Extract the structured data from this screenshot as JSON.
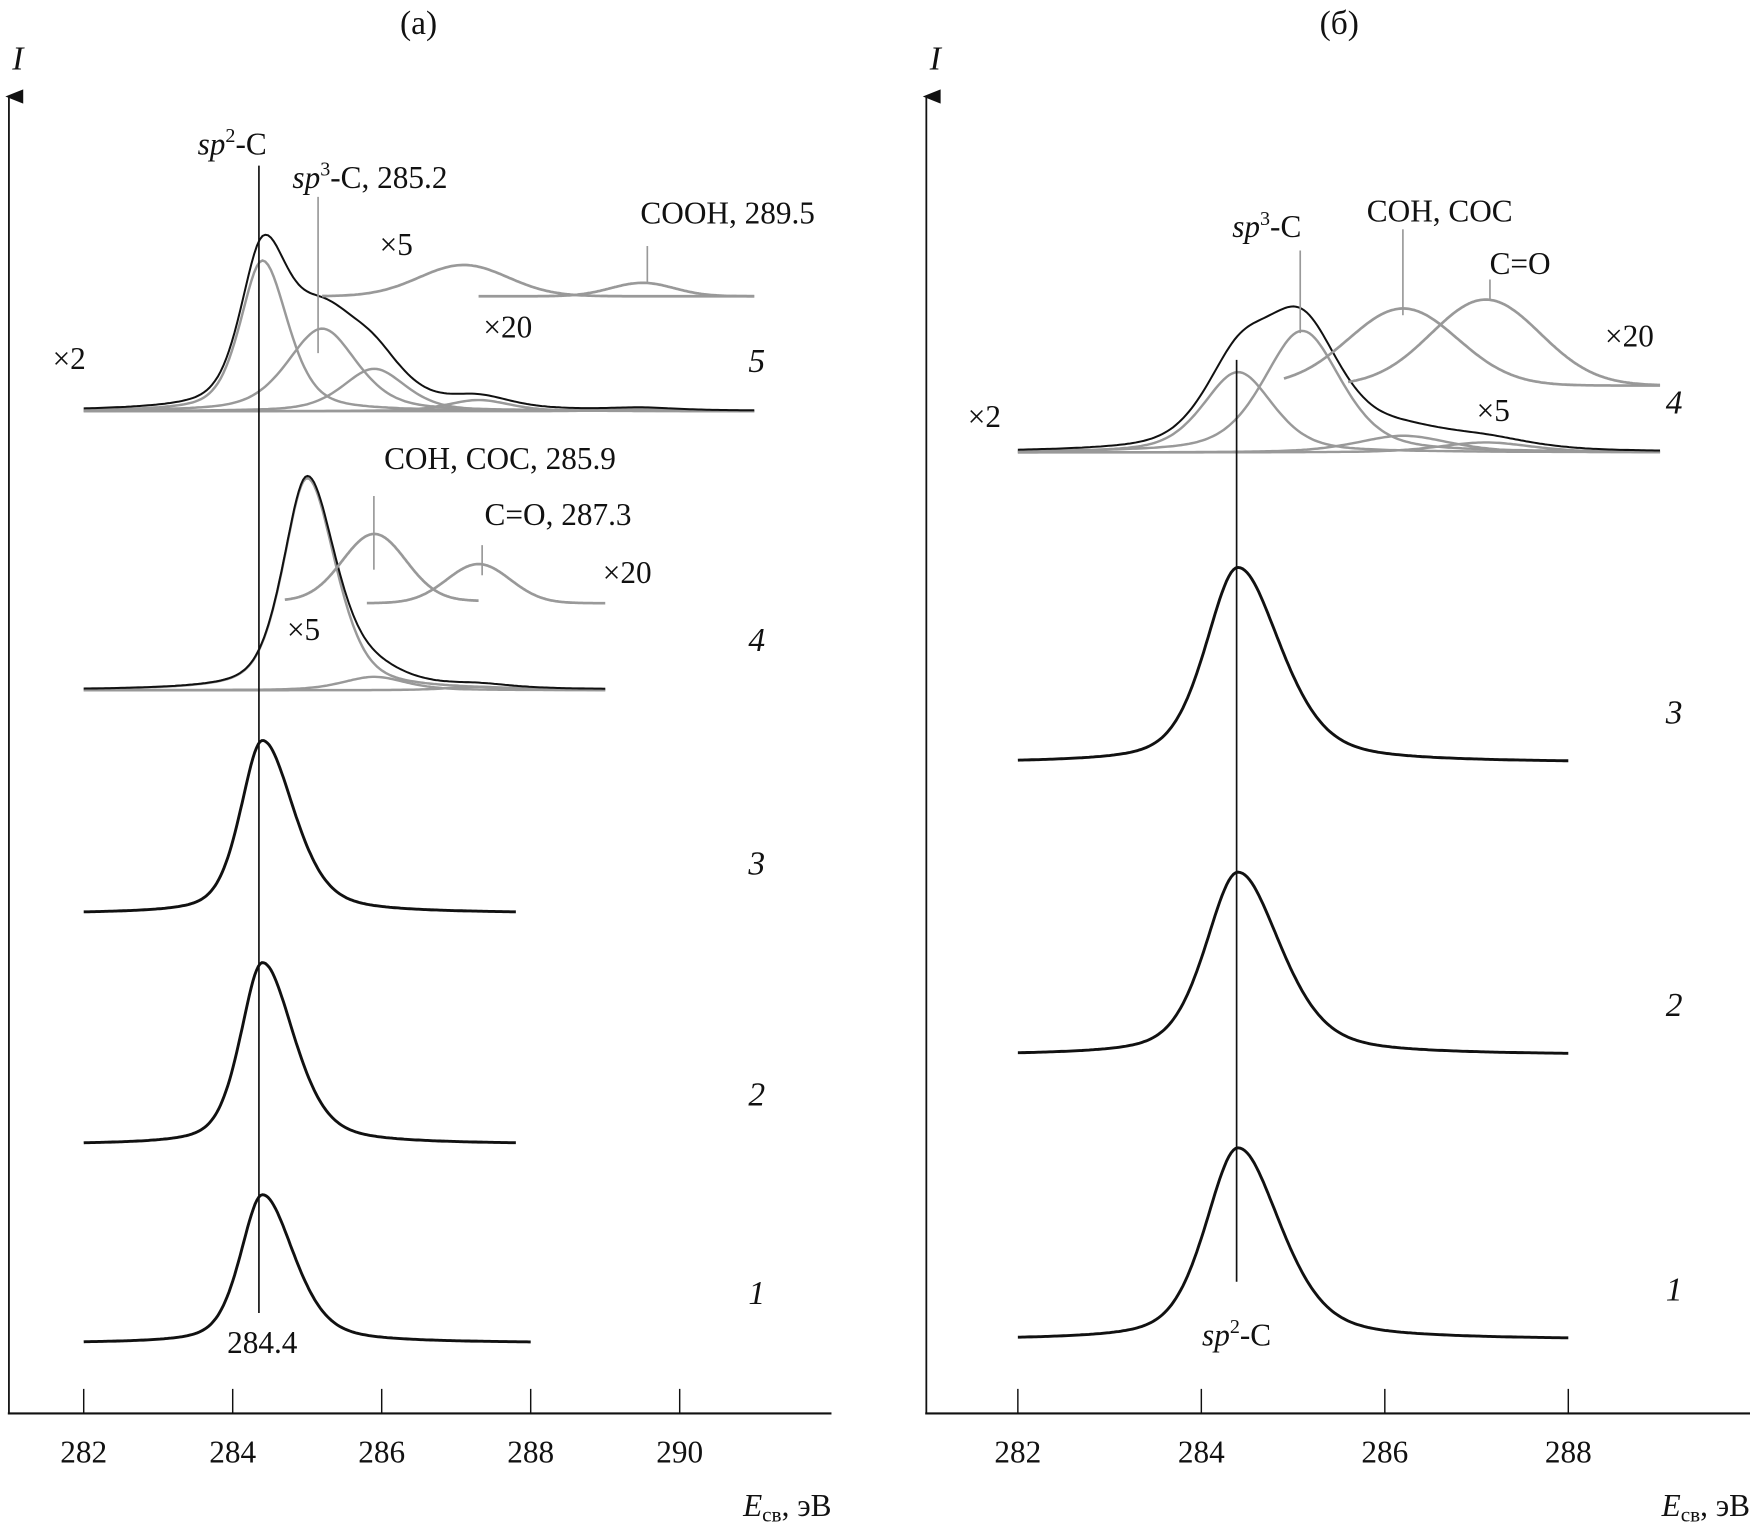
{
  "chart_data": [
    {
      "type": "line",
      "panel_label": "(a)",
      "ylabel": "I",
      "xlabel_main": "E",
      "xlabel_sub": "св",
      "xlabel_unit": ", эВ",
      "xlim": [
        281,
        292
      ],
      "ylim": [
        0,
        118
      ],
      "xticks": [
        282,
        284,
        286,
        288,
        290
      ],
      "reference_line": {
        "energy": 284.4,
        "label_top_main": "sp",
        "label_top_sup": "2",
        "label_top_rest": "-C",
        "label_bottom": "284.4"
      },
      "spectra": [
        {
          "id": "1",
          "offset": 6.2,
          "x": [
            282,
            288
          ],
          "sum": false,
          "components": [
            {
              "center": 284.4,
              "amp": 13.3,
              "wl": 0.35,
              "wr": 0.5
            }
          ]
        },
        {
          "id": "2",
          "offset": 24.0,
          "x": [
            282,
            287.8
          ],
          "sum": false,
          "components": [
            {
              "center": 284.4,
              "amp": 16.3,
              "wl": 0.35,
              "wr": 0.5
            }
          ]
        },
        {
          "id": "3",
          "offset": 44.7,
          "x": [
            282,
            287.8
          ],
          "sum": false,
          "components": [
            {
              "center": 284.4,
              "amp": 15.5,
              "wl": 0.35,
              "wr": 0.5
            }
          ]
        },
        {
          "id": "4",
          "offset": 64.7,
          "x": [
            282,
            289
          ],
          "sum": true,
          "components": [
            {
              "center": 285.0,
              "amp": 19.0,
              "wl": 0.38,
              "wr": 0.45
            },
            {
              "center": 285.9,
              "amp": 1.2,
              "wl": 0.5,
              "wr": 0.5
            },
            {
              "center": 287.3,
              "amp": 0.3,
              "wl": 0.5,
              "wr": 0.5
            }
          ]
        },
        {
          "id": "5",
          "offset": 89.7,
          "x": [
            282,
            291
          ],
          "sum": true,
          "components": [
            {
              "center": 284.4,
              "amp": 13.5,
              "wl": 0.35,
              "wr": 0.4
            },
            {
              "center": 285.2,
              "amp": 7.4,
              "wl": 0.55,
              "wr": 0.55
            },
            {
              "center": 285.9,
              "amp": 3.8,
              "wl": 0.5,
              "wr": 0.5
            },
            {
              "center": 287.3,
              "amp": 1.0,
              "wl": 0.5,
              "wr": 0.5
            },
            {
              "center": 289.5,
              "amp": 0.2,
              "wl": 0.5,
              "wr": 0.5
            }
          ]
        }
      ],
      "insets": [
        {
          "scale": "×5",
          "offset": 72.7,
          "x": [
            284.7,
            287.3
          ],
          "components": [
            {
              "center": 285.9,
              "amp": 6.0,
              "wl": 0.5,
              "wr": 0.5
            }
          ]
        },
        {
          "scale": "×20",
          "offset": 72.5,
          "x": [
            285.8,
            289
          ],
          "components": [
            {
              "center": 287.3,
              "amp": 3.5,
              "wl": 0.5,
              "wr": 0.5
            }
          ]
        },
        {
          "scale": "×5",
          "offset": 100.0,
          "x": [
            285.2,
            291
          ],
          "components": [
            {
              "center": 287.1,
              "amp": 2.8,
              "wl": 0.7,
              "wr": 0.7
            }
          ]
        },
        {
          "scale": "×20",
          "offset": 100.0,
          "x": [
            287.3,
            291
          ],
          "components": [
            {
              "center": 289.5,
              "amp": 1.2,
              "wl": 0.5,
              "wr": 0.5
            }
          ]
        }
      ],
      "annotations": {
        "sp3": {
          "main": "sp",
          "sup": "3",
          "rest": "-C, 285.2",
          "energy": 285.2
        },
        "cooh": {
          "text": "COOH, 289.5",
          "energy": 289.5
        },
        "coh": {
          "text": "COH, COC, 285.9",
          "energy": 285.9
        },
        "co": {
          "text": "C=O, 287.3",
          "energy": 287.3
        },
        "x2": "×2",
        "x5_top": "×5",
        "x20_top": "×20",
        "x5_mid": "×5",
        "x20_mid": "×20"
      }
    },
    {
      "type": "line",
      "panel_label": "(б)",
      "ylabel": "I",
      "xlabel_main": "E",
      "xlabel_sub": "св",
      "xlabel_unit": ", эВ",
      "xlim": [
        281,
        290
      ],
      "ylim": [
        0,
        118
      ],
      "xticks": [
        282,
        284,
        286,
        288
      ],
      "reference_line": {
        "energy": 284.4,
        "label_bottom_main": "sp",
        "label_bottom_sup": "2",
        "label_bottom_rest": "-C"
      },
      "spectra": [
        {
          "id": "1",
          "offset": 6.5,
          "x": [
            282,
            288
          ],
          "sum": false,
          "components": [
            {
              "center": 284.4,
              "amp": 17.2,
              "wl": 0.42,
              "wr": 0.55
            }
          ]
        },
        {
          "id": "2",
          "offset": 32.0,
          "x": [
            282,
            288
          ],
          "sum": false,
          "components": [
            {
              "center": 284.4,
              "amp": 16.4,
              "wl": 0.42,
              "wr": 0.55
            }
          ]
        },
        {
          "id": "3",
          "offset": 58.2,
          "x": [
            282,
            288
          ],
          "sum": false,
          "components": [
            {
              "center": 284.4,
              "amp": 17.5,
              "wl": 0.42,
              "wr": 0.55
            }
          ]
        },
        {
          "id": "4",
          "offset": 86.0,
          "x": [
            282,
            289
          ],
          "sum": true,
          "components": [
            {
              "center": 284.4,
              "amp": 7.2,
              "wl": 0.45,
              "wr": 0.45
            },
            {
              "center": 285.1,
              "amp": 10.9,
              "wl": 0.5,
              "wr": 0.5
            },
            {
              "center": 286.2,
              "amp": 1.5,
              "wl": 0.6,
              "wr": 0.6
            },
            {
              "center": 287.1,
              "amp": 0.9,
              "wl": 0.6,
              "wr": 0.6
            }
          ]
        }
      ],
      "insets": [
        {
          "scale": "×5",
          "offset": 92.0,
          "x": [
            284.9,
            289
          ],
          "components": [
            {
              "center": 286.2,
              "amp": 6.9,
              "wl": 0.7,
              "wr": 0.7
            }
          ]
        },
        {
          "scale": "×20",
          "offset": 92.0,
          "x": [
            285.6,
            289
          ],
          "components": [
            {
              "center": 287.1,
              "amp": 7.7,
              "wl": 0.7,
              "wr": 0.7
            }
          ]
        }
      ],
      "annotations": {
        "sp3": {
          "main": "sp",
          "sup": "3",
          "rest": "-C",
          "energy": 285.1
        },
        "coh": {
          "text": "COH, COC",
          "energy": 286.2
        },
        "co": {
          "text": "C=O",
          "energy": 287.1
        },
        "x2": "×2",
        "x5": "×5",
        "x20": "×20"
      }
    }
  ]
}
